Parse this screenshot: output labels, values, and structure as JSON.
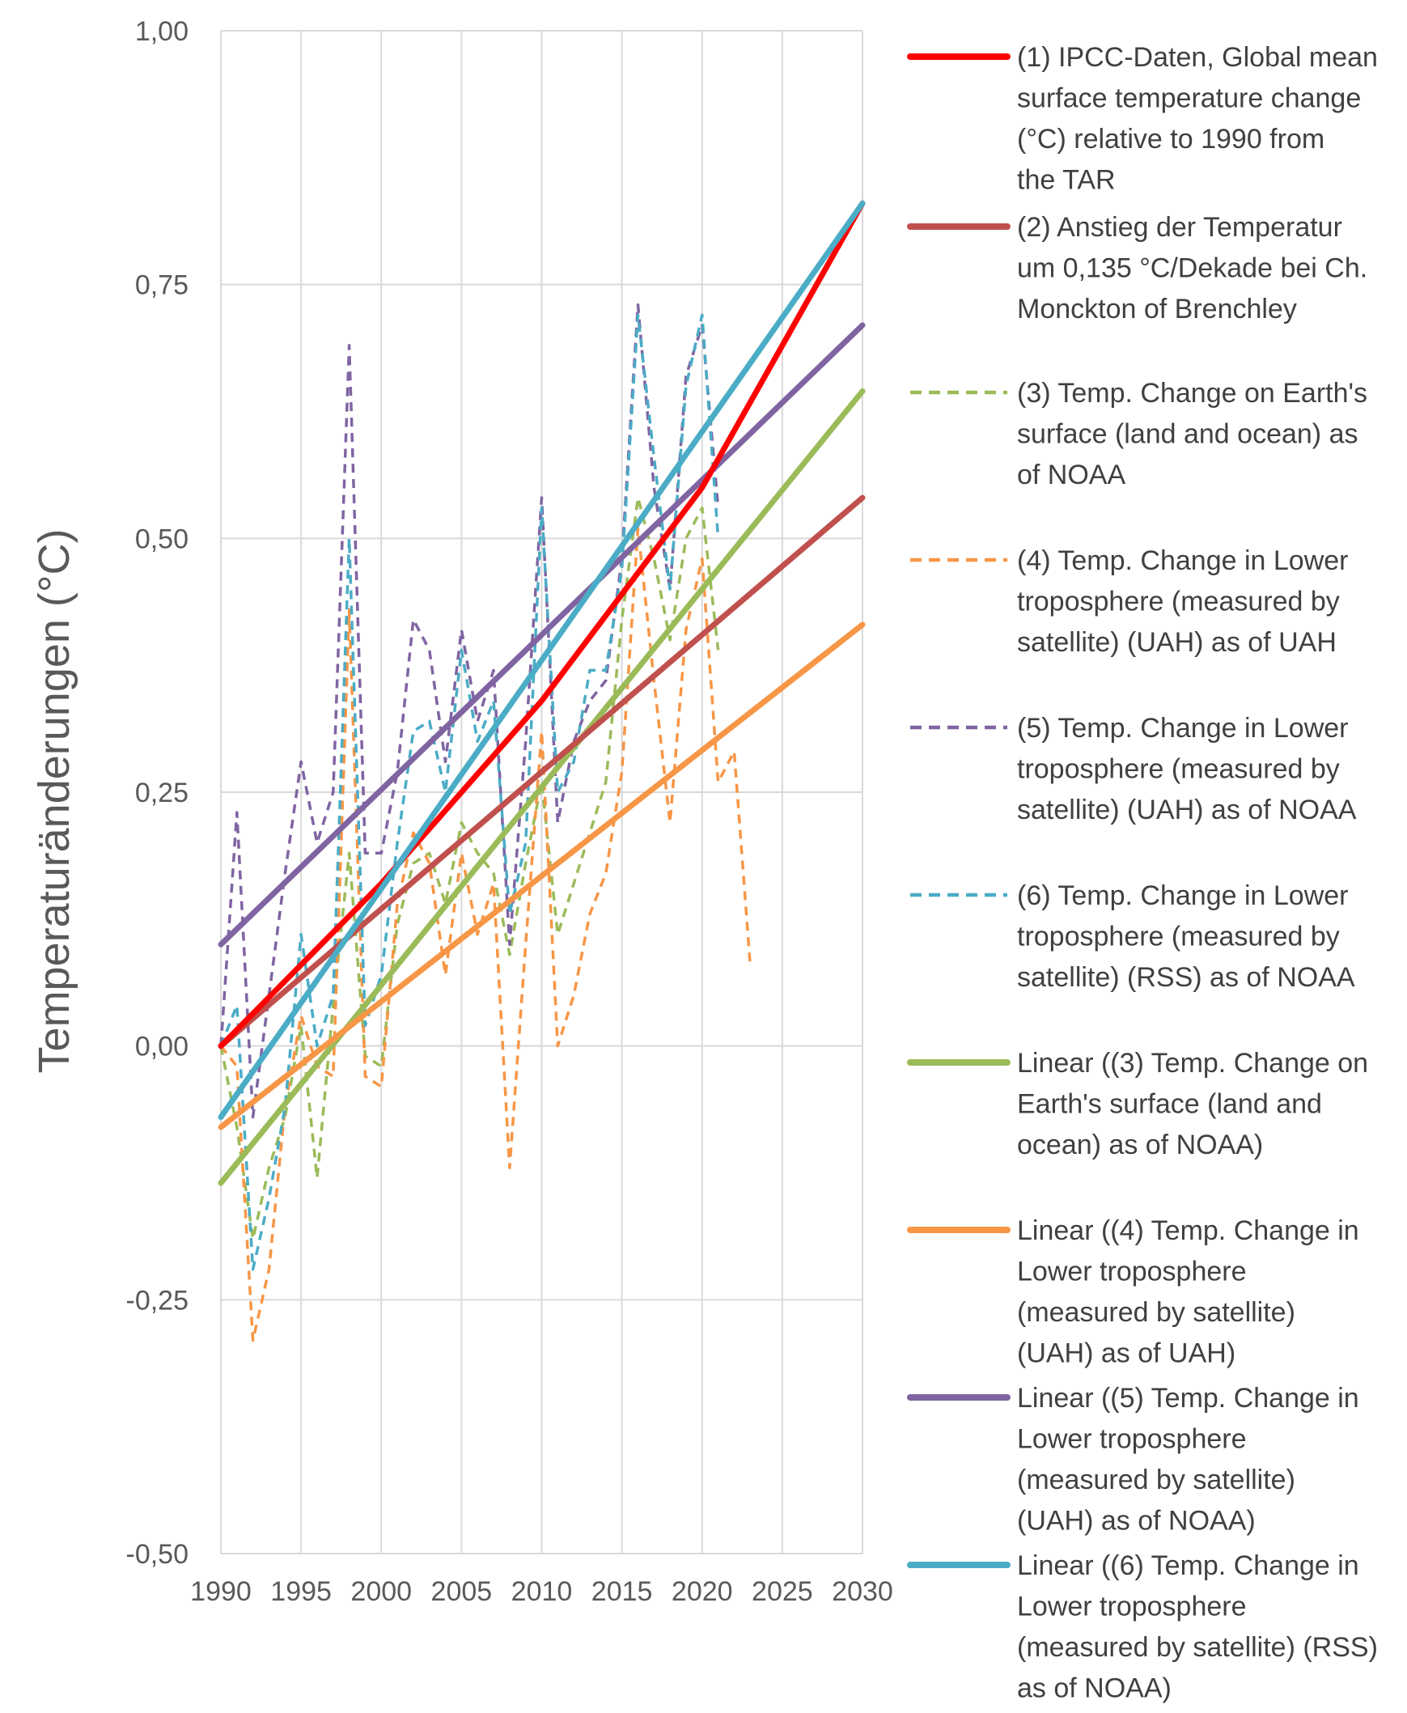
{
  "chart_data": {
    "type": "line",
    "ylabel": "Temperaturänderungen (°C)",
    "xlabel": "",
    "xlim": [
      1990,
      2030
    ],
    "ylim": [
      -0.5,
      1.0
    ],
    "grid": true,
    "legend_position": "right",
    "x_ticks": [
      1990,
      1995,
      2000,
      2005,
      2010,
      2015,
      2020,
      2025,
      2030
    ],
    "y_ticks": [
      -0.5,
      -0.25,
      0.0,
      0.25,
      0.5,
      0.75,
      1.0
    ],
    "x_tick_labels": [
      "1990",
      "1995",
      "2000",
      "2005",
      "2010",
      "2015",
      "2020",
      "2025",
      "2030"
    ],
    "y_tick_labels": [
      "-0,50",
      "-0,25",
      "0,00",
      "0,25",
      "0,50",
      "0,75",
      "1,00"
    ],
    "series": [
      {
        "name": "(1) IPCC-Daten, Global mean surface temperature change (°C) relative to 1990 from the TAR",
        "legend_lines": [
          "(1) IPCC-Daten, Global mean",
          "surface temperature change",
          "(°C) relative to 1990 from",
          "the TAR"
        ],
        "color": "#ff0000",
        "style": "solid",
        "width": 7,
        "x": [
          1990,
          2000,
          2010,
          2020,
          2030
        ],
        "y": [
          0.0,
          0.16,
          0.34,
          0.55,
          0.83
        ]
      },
      {
        "name": "(2) Anstieg der Temperatur um 0,135 °C/Dekade bei Ch. Monckton of Brenchley",
        "legend_lines": [
          "(2) Anstieg der Temperatur",
          "um 0,135 °C/Dekade bei Ch.",
          "Monckton of Brenchley"
        ],
        "color": "#c0504d",
        "style": "solid",
        "width": 7,
        "x": [
          1990,
          2030
        ],
        "y": [
          0.0,
          0.54
        ]
      },
      {
        "name": "(3) Temp. Change on Earth's surface (land and ocean) as of NOAA",
        "legend_lines": [
          "(3) Temp. Change on Earth's",
          "surface (land and ocean) as",
          "of NOAA"
        ],
        "color": "#9bbb59",
        "style": "dashed",
        "width": 3.5,
        "x": [
          1990,
          1991,
          1992,
          1993,
          1994,
          1995,
          1996,
          1997,
          1998,
          1999,
          2000,
          2001,
          2002,
          2003,
          2004,
          2005,
          2006,
          2007,
          2008,
          2009,
          2010,
          2011,
          2012,
          2013,
          2014,
          2015,
          2016,
          2017,
          2018,
          2019,
          2020,
          2021
        ],
        "y": [
          0.0,
          -0.08,
          -0.19,
          -0.12,
          -0.07,
          0.02,
          -0.13,
          0.04,
          0.19,
          -0.01,
          -0.02,
          0.12,
          0.18,
          0.19,
          0.14,
          0.22,
          0.19,
          0.17,
          0.09,
          0.18,
          0.26,
          0.11,
          0.16,
          0.21,
          0.26,
          0.42,
          0.54,
          0.48,
          0.4,
          0.5,
          0.53,
          0.39
        ]
      },
      {
        "name": "(4) Temp. Change in Lower troposphere (measured by satellite) (UAH) as of UAH",
        "legend_lines": [
          "(4) Temp. Change in Lower",
          "troposphere (measured by",
          "satellite) (UAH) as of UAH"
        ],
        "color": "#f79646",
        "style": "dashed",
        "width": 3.5,
        "x": [
          1990,
          1991,
          1992,
          1993,
          1994,
          1995,
          1996,
          1997,
          1998,
          1999,
          2000,
          2001,
          2002,
          2003,
          2004,
          2005,
          2006,
          2007,
          2008,
          2009,
          2010,
          2011,
          2012,
          2013,
          2014,
          2015,
          2016,
          2017,
          2018,
          2019,
          2020,
          2021,
          2022,
          2023
        ],
        "y": [
          0.0,
          -0.02,
          -0.29,
          -0.22,
          -0.06,
          0.03,
          -0.02,
          -0.03,
          0.43,
          -0.03,
          -0.04,
          0.14,
          0.21,
          0.18,
          0.07,
          0.19,
          0.11,
          0.16,
          -0.12,
          0.1,
          0.31,
          0.0,
          0.05,
          0.13,
          0.17,
          0.27,
          0.51,
          0.36,
          0.22,
          0.41,
          0.48,
          0.26,
          0.29,
          0.08
        ]
      },
      {
        "name": "(5) Temp. Change in Lower troposphere (measured by satellite) (UAH) as of NOAA",
        "legend_lines": [
          "(5) Temp. Change in Lower",
          "troposphere (measured by",
          "satellite) (UAH) as of NOAA"
        ],
        "color": "#8064a2",
        "style": "dashed",
        "width": 3.5,
        "x": [
          1990,
          1991,
          1992,
          1993,
          1994,
          1995,
          1996,
          1997,
          1998,
          1999,
          2000,
          2001,
          2002,
          2003,
          2004,
          2005,
          2006,
          2007,
          2008,
          2009,
          2010,
          2011,
          2012,
          2013,
          2014,
          2015,
          2016,
          2017,
          2018,
          2019,
          2020,
          2021
        ],
        "y": [
          0.0,
          0.23,
          -0.07,
          0.05,
          0.17,
          0.28,
          0.2,
          0.25,
          0.69,
          0.19,
          0.19,
          0.27,
          0.42,
          0.39,
          0.28,
          0.41,
          0.32,
          0.37,
          0.1,
          0.3,
          0.54,
          0.22,
          0.3,
          0.34,
          0.36,
          0.48,
          0.73,
          0.55,
          0.45,
          0.66,
          0.71,
          0.53
        ]
      },
      {
        "name": "(6) Temp. Change in Lower troposphere (measured by satellite) (RSS) as of NOAA",
        "legend_lines": [
          "(6) Temp. Change in Lower",
          "troposphere (measured by",
          "satellite) (RSS) as of NOAA"
        ],
        "color": "#4bacc6",
        "style": "dashed",
        "width": 3.5,
        "x": [
          1990,
          1991,
          1992,
          1993,
          1994,
          1995,
          1996,
          1997,
          1998,
          1999,
          2000,
          2001,
          2002,
          2003,
          2004,
          2005,
          2006,
          2007,
          2008,
          2009,
          2010,
          2011,
          2012,
          2013,
          2014,
          2015,
          2016,
          2017,
          2018,
          2019,
          2020,
          2021
        ],
        "y": [
          0.0,
          0.04,
          -0.22,
          -0.15,
          -0.06,
          0.11,
          0.0,
          0.05,
          0.5,
          0.02,
          0.07,
          0.2,
          0.31,
          0.32,
          0.25,
          0.39,
          0.3,
          0.34,
          0.13,
          0.2,
          0.53,
          0.25,
          0.28,
          0.37,
          0.37,
          0.47,
          0.72,
          0.58,
          0.45,
          0.65,
          0.72,
          0.5
        ]
      },
      {
        "name": "Linear ((3) Temp. Change on Earth's surface (land and ocean) as of NOAA)",
        "legend_lines": [
          "Linear ((3) Temp. Change on",
          "Earth's surface (land and",
          "ocean) as of NOAA)"
        ],
        "color": "#9bbb59",
        "style": "solid",
        "width": 7,
        "x": [
          1990,
          2030
        ],
        "y": [
          -0.135,
          0.645
        ]
      },
      {
        "name": "Linear ((4) Temp. Change in Lower troposphere (measured by satellite) (UAH) as of UAH)",
        "legend_lines": [
          "Linear ((4) Temp. Change in",
          "Lower troposphere",
          "(measured by satellite)",
          "(UAH) as of UAH)"
        ],
        "color": "#f79646",
        "style": "solid",
        "width": 7,
        "x": [
          1990,
          2030
        ],
        "y": [
          -0.08,
          0.415
        ]
      },
      {
        "name": "Linear ((5) Temp. Change in Lower troposphere (measured by satellite) (UAH) as of NOAA)",
        "legend_lines": [
          "Linear ((5) Temp. Change in",
          "Lower troposphere",
          "(measured by satellite)",
          "(UAH) as of NOAA)"
        ],
        "color": "#8064a2",
        "style": "solid",
        "width": 7,
        "x": [
          1990,
          2030
        ],
        "y": [
          0.1,
          0.71
        ]
      },
      {
        "name": "Linear ((6) Temp. Change in Lower troposphere (measured by satellite) (RSS) as of NOAA)",
        "legend_lines": [
          "Linear ((6) Temp. Change in",
          "Lower troposphere",
          "(measured by satellite) (RSS)",
          "as of NOAA)"
        ],
        "color": "#4bacc6",
        "style": "solid",
        "width": 7,
        "x": [
          1990,
          2030
        ],
        "y": [
          -0.07,
          0.83
        ]
      }
    ]
  }
}
